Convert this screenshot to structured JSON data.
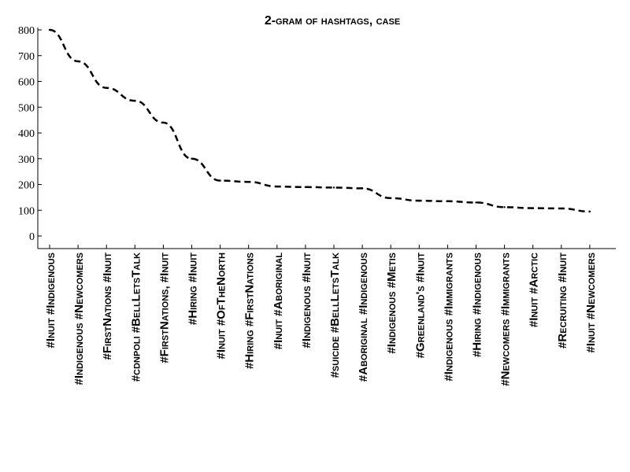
{
  "chart_data": {
    "type": "line",
    "title": "2-gram of hashtags, case",
    "xlabel": "",
    "ylabel": "",
    "categories": [
      "#Inuit #Indigenous",
      "#Indigenous #Newcomers",
      "#FirstNations #Inuit",
      "#cdnpoli #BellLetsTalk",
      "#FirstNations, #Inuit",
      "#Hiring #Inuit",
      "#Inuit #OfTheNorth",
      "#Hiring #FirstNations",
      "#Inuit #Aboriginal",
      "#Indigenous #Inuit",
      "#suicide #BellLetsTalk",
      "#Aboriginal #Indigenous",
      "#Indigenous #Metis",
      "#Greenland's #Inuit",
      "#Indigenous #Immigrants",
      "#Hiring #Indigenous",
      "#Newcomers #Immigrants",
      "#Inuit #Arctic",
      "#Recruiting #Inuit",
      "#Inuit #Newcomers"
    ],
    "values": [
      800,
      678,
      575,
      525,
      440,
      300,
      215,
      210,
      192,
      190,
      188,
      185,
      147,
      137,
      135,
      130,
      112,
      108,
      107,
      95
    ],
    "yticks": [
      0,
      100,
      200,
      300,
      400,
      500,
      600,
      700,
      800
    ],
    "ylim": [
      0,
      800
    ],
    "grid": false,
    "line_style": "dashed",
    "line_color": "#000000"
  }
}
